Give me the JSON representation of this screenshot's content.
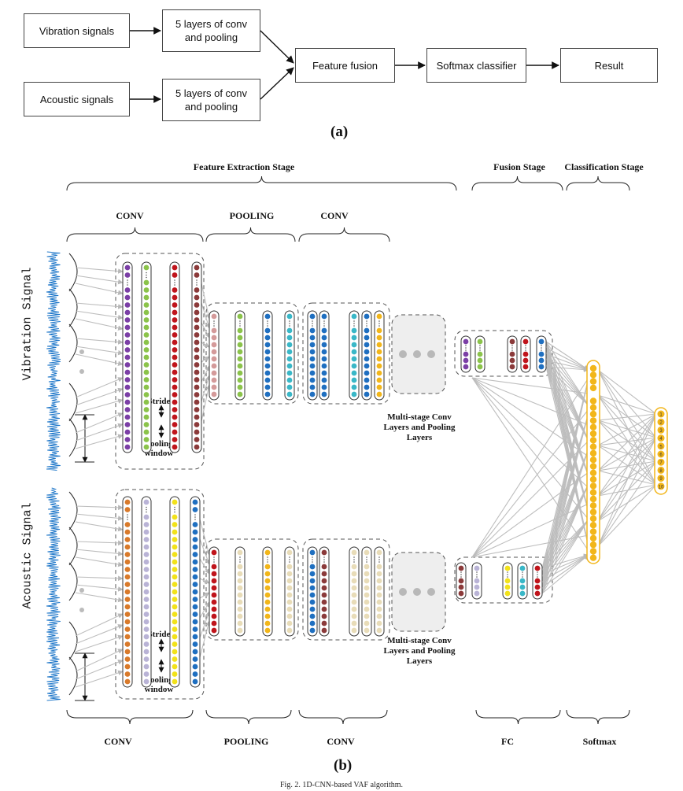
{
  "panel_a": {
    "label": "(a)",
    "boxes": {
      "vibration": "Vibration signals",
      "acoustic": "Acoustic signals",
      "conv_top": "5 layers of conv and pooling",
      "conv_bottom": "5 layers of conv and pooling",
      "fusion": "Feature fusion",
      "softmax": "Softmax classifier",
      "result": "Result"
    }
  },
  "panel_b": {
    "label": "(b)",
    "top_stages": {
      "feature_extraction": "Feature Extraction Stage",
      "fusion": "Fusion Stage",
      "classification": "Classification Stage"
    },
    "layer_labels": {
      "conv1": "CONV",
      "pooling": "POOLING",
      "conv2": "CONV"
    },
    "signals": {
      "vibration": "Vibration Signal",
      "acoustic": "Acoustic Signal"
    },
    "annotations": {
      "stride": "Stride",
      "pooling_window": "Pooling window",
      "multi_stage": "Multi-stage Conv Layers and Pooling Layers"
    },
    "bottom_labels": {
      "conv1": "CONV",
      "pooling": "POOLING",
      "conv2": "CONV",
      "fc": "FC",
      "softmax": "Softmax"
    },
    "outputs": [
      "1",
      "2",
      "3",
      "4",
      "5",
      "6",
      "7",
      "8",
      "9",
      "10"
    ]
  },
  "caption": "Fig. 2. 1D-CNN-based VAF algorithm.",
  "colors": {
    "signal": "#1f77c9",
    "purple": "#7b3fa6",
    "green": "#8bc34a",
    "red": "#c0141b",
    "brown": "#8b3a3a",
    "pink": "#d49a9a",
    "blue": "#1f6fc0",
    "teal": "#39b7c7",
    "orange": "#d97a2b",
    "lavender": "#b9b3d6",
    "yellow": "#f2e21a",
    "beige": "#e8dcb8",
    "gold": "#f2b61a",
    "arrow_gray": "#b8b8b8"
  }
}
